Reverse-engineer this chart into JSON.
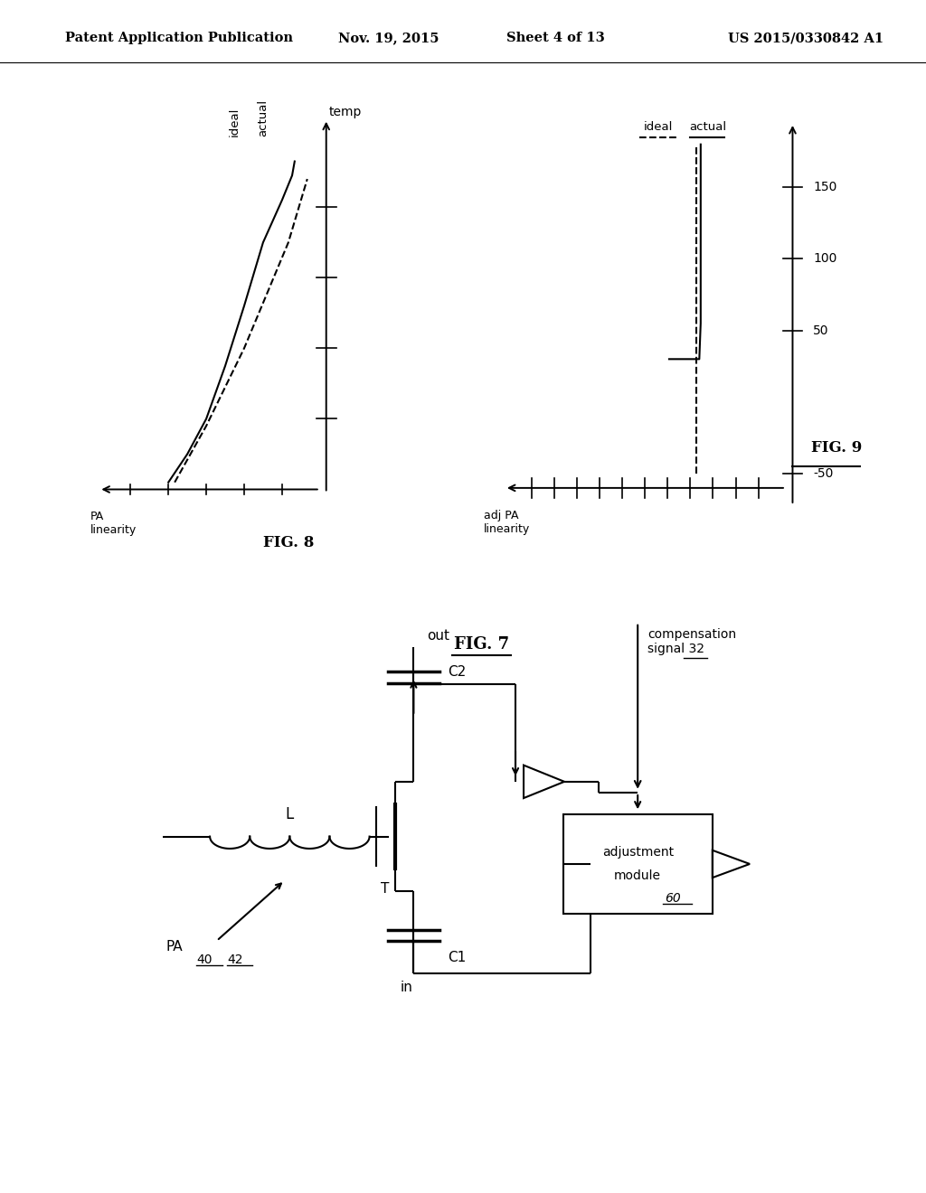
{
  "background_color": "#ffffff",
  "header_text": "Patent Application Publication",
  "header_date": "Nov. 19, 2015",
  "header_sheet": "Sheet 4 of 13",
  "header_patent": "US 2015/0330842 A1"
}
